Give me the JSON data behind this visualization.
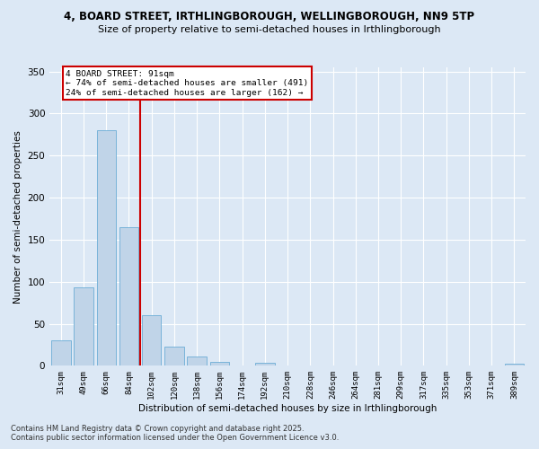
{
  "title1": "4, BOARD STREET, IRTHLINGBOROUGH, WELLINGBOROUGH, NN9 5TP",
  "title2": "Size of property relative to semi-detached houses in Irthlingborough",
  "xlabel": "Distribution of semi-detached houses by size in Irthlingborough",
  "ylabel": "Number of semi-detached properties",
  "categories": [
    "31sqm",
    "49sqm",
    "66sqm",
    "84sqm",
    "102sqm",
    "120sqm",
    "138sqm",
    "156sqm",
    "174sqm",
    "192sqm",
    "210sqm",
    "228sqm",
    "246sqm",
    "264sqm",
    "281sqm",
    "299sqm",
    "317sqm",
    "335sqm",
    "353sqm",
    "371sqm",
    "389sqm"
  ],
  "values": [
    30,
    93,
    280,
    165,
    60,
    23,
    11,
    5,
    0,
    4,
    0,
    0,
    0,
    0,
    0,
    0,
    0,
    0,
    0,
    0,
    2
  ],
  "bar_color": "#c0d4e8",
  "bar_edge_color": "#6badd6",
  "vline_color": "#cc0000",
  "annotation_text": "4 BOARD STREET: 91sqm\n← 74% of semi-detached houses are smaller (491)\n24% of semi-detached houses are larger (162) →",
  "ylim": [
    0,
    355
  ],
  "yticks": [
    0,
    50,
    100,
    150,
    200,
    250,
    300,
    350
  ],
  "footnote": "Contains HM Land Registry data © Crown copyright and database right 2025.\nContains public sector information licensed under the Open Government Licence v3.0.",
  "background_color": "#dce8f5",
  "grid_color": "#ffffff"
}
